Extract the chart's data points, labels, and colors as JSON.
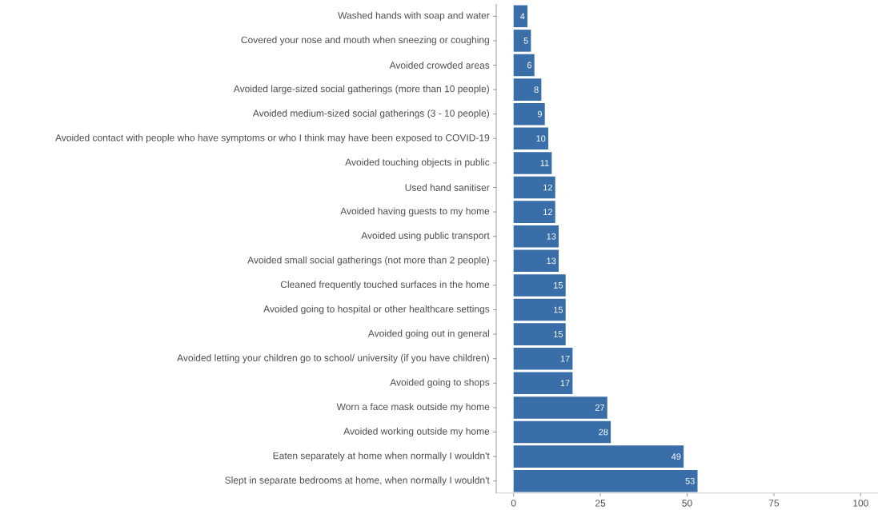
{
  "chart_data": {
    "type": "bar",
    "orientation": "horizontal",
    "categories": [
      "Washed hands with soap and water",
      "Covered your nose and mouth when sneezing or coughing",
      "Avoided crowded areas",
      "Avoided large-sized social gatherings (more than 10 people)",
      "Avoided medium-sized social gatherings (3 - 10 people)",
      "Avoided contact with people who have symptoms or who I think may have been exposed to COVID-19",
      "Avoided touching objects in public",
      "Used hand sanitiser",
      "Avoided having guests to my home",
      "Avoided using public transport",
      "Avoided small social gatherings (not more than 2 people)",
      "Cleaned frequently touched surfaces in the home",
      "Avoided going to hospital or other healthcare settings",
      "Avoided going out in general",
      "Avoided letting your children go to school/ university (if you have children)",
      "Avoided going to shops",
      "Worn a face mask outside my home",
      "Avoided working outside my home",
      "Eaten separately at home when normally I wouldn't",
      "Slept in separate bedrooms at home, when normally I wouldn't"
    ],
    "values": [
      4,
      5,
      6,
      8,
      9,
      10,
      11,
      12,
      12,
      13,
      13,
      15,
      15,
      15,
      17,
      17,
      27,
      28,
      49,
      53
    ],
    "color": "#3a6ea8",
    "data_labels": true,
    "grid": false,
    "xlim": [
      -5,
      105
    ],
    "xticks": [
      0,
      25,
      50,
      75,
      100
    ]
  }
}
